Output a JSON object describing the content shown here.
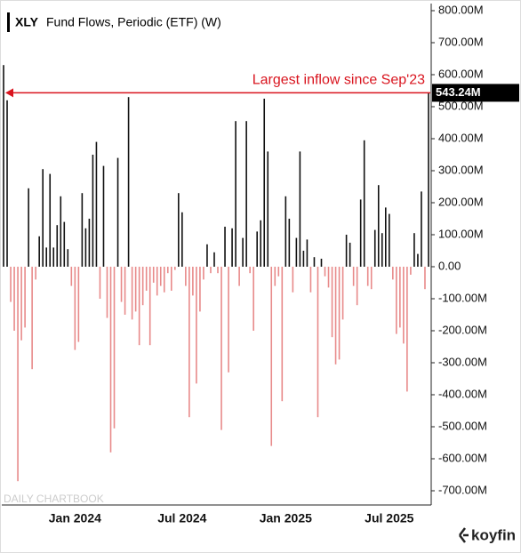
{
  "chart_data": {
    "type": "bar",
    "ticker": "XLY",
    "title": "Fund Flows, Periodic (ETF) (W)",
    "annotation": "Largest inflow since Sep'23",
    "watermark": "DAILY CHARTBOOK",
    "brand": "koyfin",
    "pos_color": "#111111",
    "neg_color": "#e88a8a",
    "annotation_color": "#d9141e",
    "ylim": [
      -700,
      800
    ],
    "yticks": [
      {
        "value": 800,
        "label": "800.00M"
      },
      {
        "value": 700,
        "label": "700.00M"
      },
      {
        "value": 600,
        "label": "600.00M"
      },
      {
        "value": 500,
        "label": "500.00M"
      },
      {
        "value": 400,
        "label": "400.00M"
      },
      {
        "value": 300,
        "label": "300.00M"
      },
      {
        "value": 200,
        "label": "200.00M"
      },
      {
        "value": 100,
        "label": "100.00M"
      },
      {
        "value": 0,
        "label": "0.00"
      },
      {
        "value": -100,
        "label": "-100.00M"
      },
      {
        "value": -200,
        "label": "-200.00M"
      },
      {
        "value": -300,
        "label": "-300.00M"
      },
      {
        "value": -400,
        "label": "-400.00M"
      },
      {
        "value": -500,
        "label": "-500.00M"
      },
      {
        "value": -600,
        "label": "-600.00M"
      },
      {
        "value": -700,
        "label": "-700.00M"
      }
    ],
    "categories": [
      null,
      null,
      null,
      null,
      null,
      null,
      null,
      null,
      null,
      null,
      null,
      null,
      null,
      null,
      null,
      null,
      null,
      null,
      null,
      null,
      "Jan 2024",
      null,
      null,
      null,
      null,
      null,
      null,
      null,
      null,
      null,
      null,
      null,
      null,
      null,
      null,
      null,
      null,
      null,
      null,
      null,
      null,
      null,
      null,
      null,
      null,
      null,
      null,
      null,
      null,
      null,
      "Jul 2024",
      null,
      null,
      null,
      null,
      null,
      null,
      null,
      null,
      null,
      null,
      null,
      null,
      null,
      null,
      null,
      null,
      null,
      null,
      null,
      null,
      null,
      null,
      null,
      null,
      null,
      null,
      null,
      null,
      "Jan 2025",
      null,
      null,
      null,
      null,
      null,
      null,
      null,
      null,
      null,
      null,
      null,
      null,
      null,
      null,
      null,
      null,
      null,
      null,
      null,
      null,
      null,
      null,
      null,
      null,
      null,
      null,
      null,
      null,
      "Jul 2025",
      null,
      null,
      null,
      null,
      null,
      null,
      null,
      null,
      null,
      null,
      null
    ],
    "values": [
      630,
      520,
      -110,
      -200,
      -670,
      -230,
      -190,
      245,
      -320,
      -40,
      95,
      305,
      60,
      290,
      60,
      130,
      220,
      140,
      55,
      -60,
      -260,
      -235,
      230,
      120,
      150,
      350,
      390,
      -100,
      315,
      -160,
      -580,
      -505,
      340,
      -110,
      -150,
      530,
      -165,
      -140,
      -245,
      -120,
      -75,
      -245,
      -50,
      -90,
      -60,
      -80,
      -20,
      -75,
      -10,
      230,
      170,
      -60,
      -470,
      -90,
      -365,
      -140,
      -40,
      70,
      -20,
      45,
      -20,
      -510,
      125,
      -330,
      120,
      455,
      -60,
      90,
      455,
      -20,
      -200,
      110,
      145,
      525,
      360,
      -560,
      -60,
      -30,
      -420,
      220,
      150,
      -80,
      90,
      360,
      50,
      85,
      -80,
      30,
      -470,
      25,
      -30,
      -65,
      -220,
      -305,
      -290,
      -165,
      100,
      75,
      -60,
      -120,
      210,
      395,
      -60,
      -70,
      115,
      255,
      105,
      185,
      165,
      -40,
      -210,
      -190,
      -240,
      -390,
      -25,
      105,
      40,
      235,
      -70,
      543.24
    ],
    "value_labels": [
      null,
      null,
      null,
      null,
      null,
      null,
      null,
      null,
      null,
      null,
      null,
      null,
      null,
      null,
      null,
      null,
      null,
      null,
      null,
      null,
      null,
      null,
      null,
      null,
      null,
      null,
      null,
      null,
      null,
      null,
      null,
      null,
      null,
      null,
      null,
      null,
      null,
      null,
      null,
      null,
      null,
      null,
      null,
      null,
      null,
      null,
      null,
      null,
      null,
      null,
      null,
      null,
      null,
      null,
      null,
      null,
      null,
      null,
      null,
      null,
      null,
      null,
      null,
      null,
      null,
      null,
      null,
      null,
      null,
      null,
      null,
      null,
      null,
      null,
      null,
      null,
      null,
      null,
      null,
      null,
      null,
      null,
      null,
      null,
      null,
      null,
      null,
      null,
      null,
      null,
      null,
      null,
      null,
      null,
      null,
      null,
      null,
      null,
      null,
      null,
      null,
      null,
      null,
      null,
      null,
      null,
      null,
      null,
      null,
      null,
      null,
      null,
      null,
      null,
      null,
      null,
      null,
      null,
      null,
      "543.24M"
    ]
  }
}
